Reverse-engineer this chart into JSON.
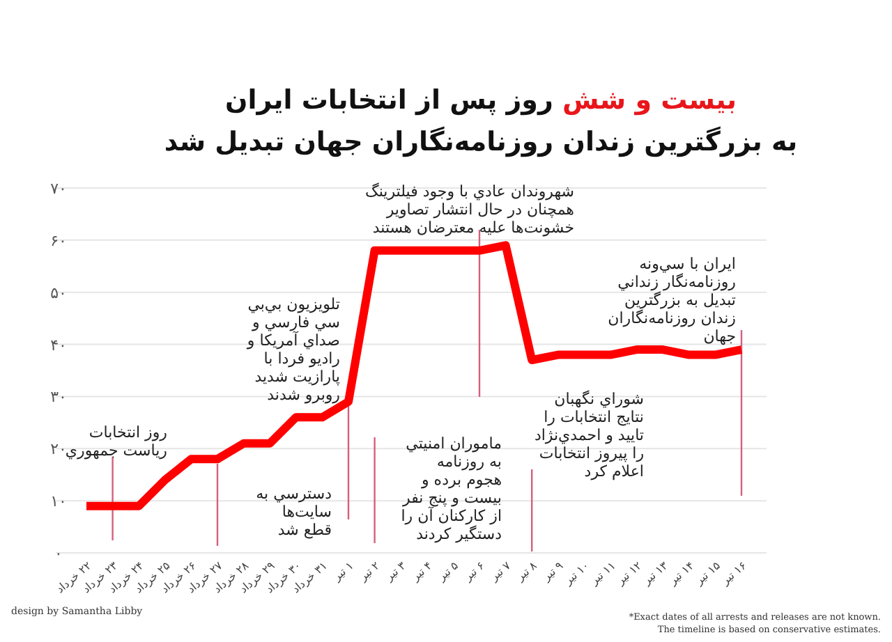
{
  "chart_data": {
    "type": "line",
    "title": "بیست و شش روز پس از انتخابات ایران\nبه بزرگترین زندان روزنامه‌نگاران جهان تبدیل شد",
    "categories": [
      "۲۲ خرداد",
      "۲۳ خرداد",
      "۲۴ خرداد",
      "۲۵ خرداد",
      "۲۶ خرداد",
      "۲۷ خرداد",
      "۲۸ خرداد",
      "۲۹ خرداد",
      "۳۰ خرداد",
      "۳۱ خرداد",
      "۱ تیر",
      "۲ تیر",
      "۳ تیر",
      "۴ تیر",
      "۵ تیر",
      "۶ تیر",
      "۷ تیر",
      "۸ تیر",
      "۹ تیر",
      "۱۰ تیر",
      "۱۱ تیر",
      "۱۲ تیر",
      "۱۳ تیر",
      "۱۴ تیر",
      "۱۵ تیر",
      "۱۶ تیر"
    ],
    "series": [
      {
        "color": "#ff0000",
        "values": [
          9,
          9,
          9,
          14,
          18,
          18,
          21,
          21,
          26,
          26,
          29,
          58,
          58,
          58,
          58,
          58,
          59,
          37,
          38,
          38,
          38,
          39,
          39,
          38,
          38,
          39
        ]
      }
    ],
    "ylim": [
      0,
      70
    ],
    "yticks": [
      {
        "value": 0,
        "label": "۰"
      },
      {
        "value": 10,
        "label": "۱۰"
      },
      {
        "value": 20,
        "label": "۲۰"
      },
      {
        "value": 30,
        "label": "۳۰"
      },
      {
        "value": 40,
        "label": "۴۰"
      },
      {
        "value": 50,
        "label": "۵۰"
      },
      {
        "value": 60,
        "label": "۶۰"
      },
      {
        "value": 70,
        "label": "۷۰"
      }
    ],
    "grid": "y",
    "ref_lines": [
      {
        "axis": "x",
        "value": "۲۳ خرداد",
        "label": "روز انتخابات\nریاست جمهوري",
        "color": "#d4607e"
      },
      {
        "axis": "x",
        "value": "۲۷ خرداد",
        "label": "دسترسي به\nسایت‌ها\nقطع شد",
        "color": "#d4607e"
      },
      {
        "axis": "x",
        "value": "۱ تیر",
        "label": "تلویزیون بي‌بي\nسي فارسي و\nصداي آمریکا و\nرادیو فردا با\nپارازیت شدید\nروبرو شدند",
        "color": "#d4607e"
      },
      {
        "axis": "x",
        "value": "۲ تیر",
        "label": "ماموران امنیتي\nبه روزنامه\nهجوم برده و\nبیست و پنج نفر\nاز کارکنان آن را\nدستگیر کردند",
        "color": "#d4607e"
      },
      {
        "axis": "x",
        "value": "۶ تیر",
        "label": "شهروندان عادي با وجود فیلترینگ\nهمچنان در حال انتشار تصاویر\nخشونت‌ها علیه معترضان هستند",
        "color": "#d4607e"
      },
      {
        "axis": "x",
        "value": "۸ تیر",
        "label": "شوراي نگهبان\nنتایج انتخابات را\nتایید و احمدي‌نژاد\nرا پیروز انتخابات\nاعلام کرد",
        "color": "#d4607e"
      },
      {
        "axis": "x",
        "value": "۱۶ تیر",
        "label": "ایران با سي‌ونه\nروزنامه‌نگار زنداني\nتبدیل به بزرگترین\nزندان روزنامه‌نگاران\nجهان",
        "color": "#d4607e"
      }
    ],
    "annotations": [
      "design by Samantha Libby",
      "*Exact dates of all arrests and releases are not known.\nThe timeline is based on conservative estimates."
    ]
  }
}
